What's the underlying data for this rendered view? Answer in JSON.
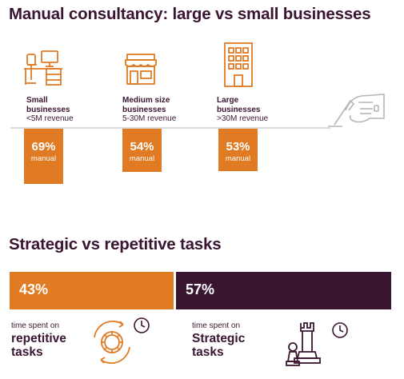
{
  "title_top": "Manual consultancy: large vs small businesses",
  "title_bottom": "Strategic vs repetitive tasks",
  "colors": {
    "orange": "#e07b24",
    "plum": "#3a1530"
  },
  "chart_data": [
    {
      "type": "bar",
      "title": "Manual consultancy: large vs small businesses",
      "categories": [
        "Small businesses <5M revenue",
        "Medium size businesses 5-30M revenue",
        "Large businesses >30M revenue"
      ],
      "values": [
        69,
        54,
        53
      ],
      "unit": "% manual"
    },
    {
      "type": "bar",
      "title": "Strategic vs repetitive tasks",
      "categories": [
        "repetitive tasks",
        "Strategic tasks"
      ],
      "values": [
        43,
        57
      ],
      "unit": "% time spent"
    }
  ],
  "segments": [
    {
      "name_line1": "Small",
      "name_line2": "businesses",
      "revenue": "<5M revenue",
      "pct": "69%",
      "pct_label": "manual",
      "value": 69,
      "icon": "office-desk-icon"
    },
    {
      "name_line1": "Medium size",
      "name_line2": "businesses",
      "revenue": "5-30M revenue",
      "pct": "54%",
      "pct_label": "manual",
      "value": 54,
      "icon": "storefront-icon"
    },
    {
      "name_line1": "Large",
      "name_line2": "businesses",
      "revenue": ">30M revenue",
      "pct": "53%",
      "pct_label": "manual",
      "value": 53,
      "icon": "office-building-icon"
    }
  ],
  "tasks": {
    "repetitive": {
      "pct": "43%",
      "value": 43,
      "prefix": "time spent on",
      "line1": "repetitive",
      "line2": "tasks",
      "icon": "gear-cycle-icon"
    },
    "strategic": {
      "pct": "57%",
      "value": 57,
      "prefix": "time spent on",
      "line1": "Strategic",
      "line2": "tasks",
      "icon": "chess-pieces-icon"
    }
  },
  "hand_icon": "writing-hand-icon",
  "clock_icon": "clock-icon"
}
